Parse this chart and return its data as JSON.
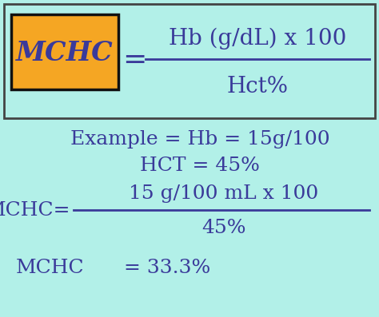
{
  "bg_color": "#b2f0e8",
  "text_color": "#3a3a9a",
  "box_bg_color": "#f5a623",
  "box_border_color": "#111111",
  "outer_box_border_color": "#444444",
  "mchc_label": "MCHC",
  "equals": "=",
  "numerator": "Hb (g/dL) x 100",
  "denominator": "Hct%",
  "example_line1": "Example = Hb = 15g/100",
  "example_line2": "HCT = 45%",
  "mchc_eq_label": "MCHC=",
  "mchc_num": "15 g/100 mL x 100",
  "mchc_den": "45%",
  "mchc_result_label": "MCHC",
  "mchc_result_value": "= 33.3%",
  "fs_title": 20,
  "fs_body": 18,
  "fs_eq": 22
}
